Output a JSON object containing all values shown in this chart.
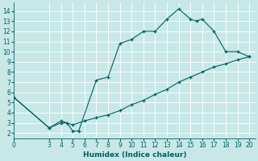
{
  "xlabel": "Humidex (Indice chaleur)",
  "bg_color": "#c8e8e8",
  "grid_color": "#ffffff",
  "line_color": "#006060",
  "xlim": [
    0,
    20.5
  ],
  "ylim": [
    1.5,
    14.8
  ],
  "xticks": [
    0,
    3,
    4,
    5,
    6,
    7,
    8,
    9,
    10,
    11,
    12,
    13,
    14,
    15,
    16,
    17,
    18,
    19,
    20
  ],
  "yticks": [
    2,
    3,
    4,
    5,
    6,
    7,
    8,
    9,
    10,
    11,
    12,
    13,
    14
  ],
  "curve1_x": [
    0,
    3,
    4,
    4.5,
    5,
    5.5,
    7,
    8,
    9,
    10,
    11,
    12,
    13,
    14,
    15,
    15.5,
    16,
    17,
    18,
    19,
    20
  ],
  "curve1_y": [
    5.5,
    2.5,
    3.0,
    3.0,
    2.2,
    2.2,
    7.2,
    7.5,
    10.8,
    11.2,
    12.0,
    12.0,
    13.2,
    14.2,
    13.2,
    13.0,
    13.2,
    12.0,
    10.0,
    10.0,
    9.5
  ],
  "curve2_x": [
    0,
    3,
    4,
    5,
    6,
    7,
    8,
    9,
    10,
    11,
    12,
    13,
    14,
    15,
    16,
    17,
    18,
    19,
    20
  ],
  "curve2_y": [
    5.5,
    2.5,
    3.2,
    2.8,
    3.2,
    3.5,
    3.8,
    4.2,
    4.8,
    5.2,
    5.8,
    6.3,
    7.0,
    7.5,
    8.0,
    8.5,
    8.8,
    9.2,
    9.5
  ]
}
